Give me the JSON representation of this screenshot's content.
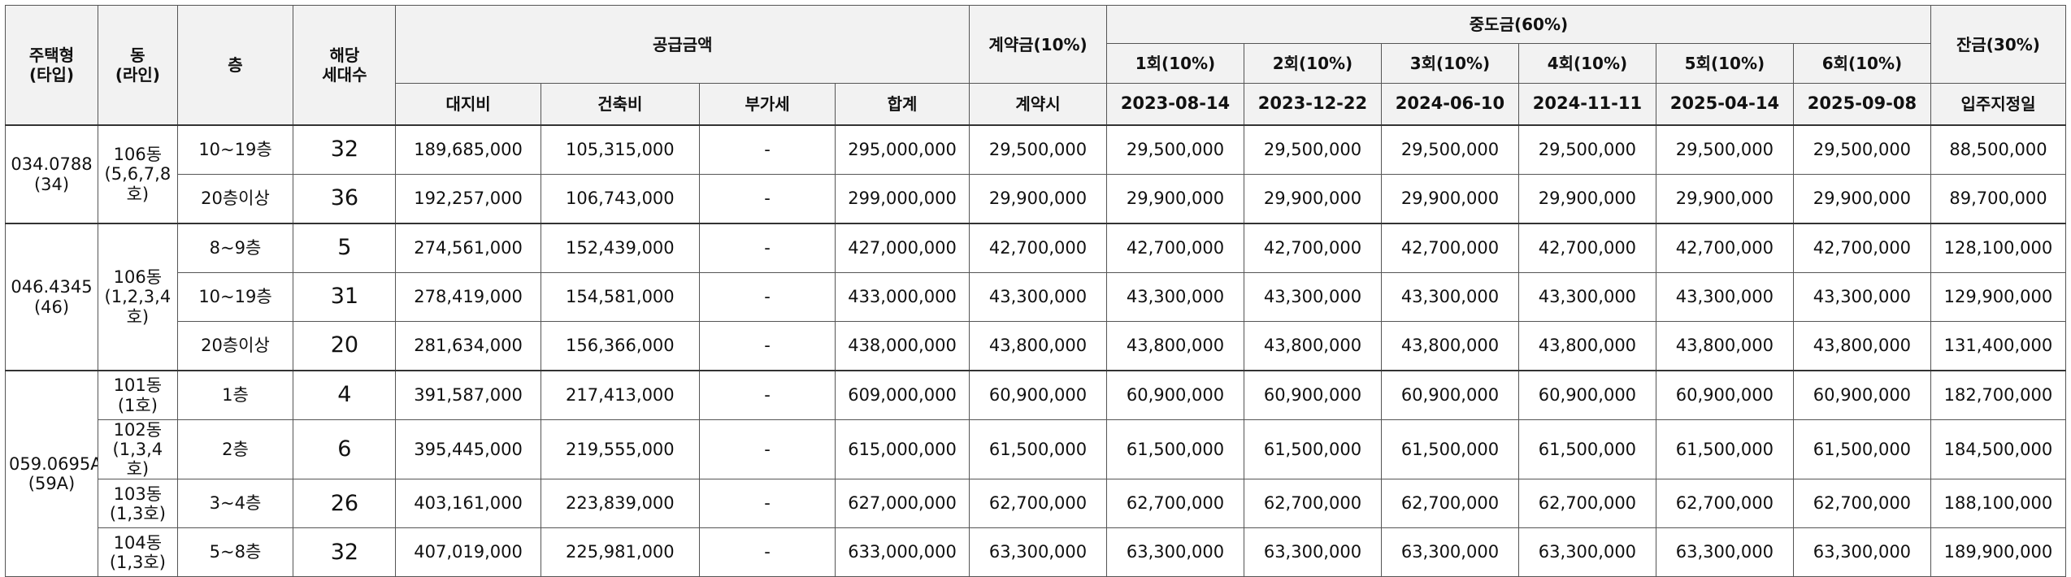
{
  "header": {
    "type_label": "주택형",
    "type_sub": "(타입)",
    "dong_label": "동",
    "dong_sub": "(라인)",
    "floor_label": "층",
    "units_label": "해당",
    "units_sub": "세대수",
    "supply_label": "공급금액",
    "land_label": "대지비",
    "building_label": "건축비",
    "vat_label": "부가세",
    "total_label": "합계",
    "deposit_label": "계약금(10%)",
    "deposit_sub": "계약시",
    "middle_label": "중도금(60%)",
    "installments": [
      {
        "label": "1회(10%)",
        "date": "2023-08-14"
      },
      {
        "label": "2회(10%)",
        "date": "2023-12-22"
      },
      {
        "label": "3회(10%)",
        "date": "2024-06-10"
      },
      {
        "label": "4회(10%)",
        "date": "2024-11-11"
      },
      {
        "label": "5회(10%)",
        "date": "2025-04-14"
      },
      {
        "label": "6회(10%)",
        "date": "2025-09-08"
      }
    ],
    "balance_label": "잔금(30%)",
    "balance_sub": "입주지정일"
  },
  "groups": [
    {
      "type": "034.0788",
      "type_sub": "(34)",
      "dong": "106동",
      "dong_sub": "(5,6,7,8호)",
      "rows": [
        {
          "floor": "10~19층",
          "units": "32",
          "land": "189,685,000",
          "building": "105,315,000",
          "vat": "-",
          "total": "295,000,000",
          "deposit": "29,500,000",
          "i1": "29,500,000",
          "i2": "29,500,000",
          "i3": "29,500,000",
          "i4": "29,500,000",
          "i5": "29,500,000",
          "i6": "29,500,000",
          "balance": "88,500,000"
        },
        {
          "floor": "20층이상",
          "units": "36",
          "land": "192,257,000",
          "building": "106,743,000",
          "vat": "-",
          "total": "299,000,000",
          "deposit": "29,900,000",
          "i1": "29,900,000",
          "i2": "29,900,000",
          "i3": "29,900,000",
          "i4": "29,900,000",
          "i5": "29,900,000",
          "i6": "29,900,000",
          "balance": "89,700,000"
        }
      ]
    },
    {
      "type": "046.4345",
      "type_sub": "(46)",
      "dong": "106동",
      "dong_sub": "(1,2,3,4호)",
      "rows": [
        {
          "floor": "8~9층",
          "units": "5",
          "land": "274,561,000",
          "building": "152,439,000",
          "vat": "-",
          "total": "427,000,000",
          "deposit": "42,700,000",
          "i1": "42,700,000",
          "i2": "42,700,000",
          "i3": "42,700,000",
          "i4": "42,700,000",
          "i5": "42,700,000",
          "i6": "42,700,000",
          "balance": "128,100,000"
        },
        {
          "floor": "10~19층",
          "units": "31",
          "land": "278,419,000",
          "building": "154,581,000",
          "vat": "-",
          "total": "433,000,000",
          "deposit": "43,300,000",
          "i1": "43,300,000",
          "i2": "43,300,000",
          "i3": "43,300,000",
          "i4": "43,300,000",
          "i5": "43,300,000",
          "i6": "43,300,000",
          "balance": "129,900,000"
        },
        {
          "floor": "20층이상",
          "units": "20",
          "land": "281,634,000",
          "building": "156,366,000",
          "vat": "-",
          "total": "438,000,000",
          "deposit": "43,800,000",
          "i1": "43,800,000",
          "i2": "43,800,000",
          "i3": "43,800,000",
          "i4": "43,800,000",
          "i5": "43,800,000",
          "i6": "43,800,000",
          "balance": "131,400,000"
        }
      ]
    },
    {
      "type": "059.0695A",
      "type_sub": "(59A)",
      "rows": [
        {
          "dong": "101동",
          "dong_sub": "(1호)",
          "floor": "1층",
          "units": "4",
          "land": "391,587,000",
          "building": "217,413,000",
          "vat": "-",
          "total": "609,000,000",
          "deposit": "60,900,000",
          "i1": "60,900,000",
          "i2": "60,900,000",
          "i3": "60,900,000",
          "i4": "60,900,000",
          "i5": "60,900,000",
          "i6": "60,900,000",
          "balance": "182,700,000"
        },
        {
          "dong": "102동",
          "dong_sub": "(1,3,4호)",
          "floor": "2층",
          "units": "6",
          "land": "395,445,000",
          "building": "219,555,000",
          "vat": "-",
          "total": "615,000,000",
          "deposit": "61,500,000",
          "i1": "61,500,000",
          "i2": "61,500,000",
          "i3": "61,500,000",
          "i4": "61,500,000",
          "i5": "61,500,000",
          "i6": "61,500,000",
          "balance": "184,500,000"
        },
        {
          "dong": "103동",
          "dong_sub": "(1,3호)",
          "floor": "3~4층",
          "units": "26",
          "land": "403,161,000",
          "building": "223,839,000",
          "vat": "-",
          "total": "627,000,000",
          "deposit": "62,700,000",
          "i1": "62,700,000",
          "i2": "62,700,000",
          "i3": "62,700,000",
          "i4": "62,700,000",
          "i5": "62,700,000",
          "i6": "62,700,000",
          "balance": "188,100,000"
        },
        {
          "dong": "104동",
          "dong_sub": "(1,3호)",
          "floor": "5~8층",
          "units": "32",
          "land": "407,019,000",
          "building": "225,981,000",
          "vat": "-",
          "total": "633,000,000",
          "deposit": "63,300,000",
          "i1": "63,300,000",
          "i2": "63,300,000",
          "i3": "63,300,000",
          "i4": "63,300,000",
          "i5": "63,300,000",
          "i6": "63,300,000",
          "balance": "189,900,000"
        }
      ]
    }
  ]
}
